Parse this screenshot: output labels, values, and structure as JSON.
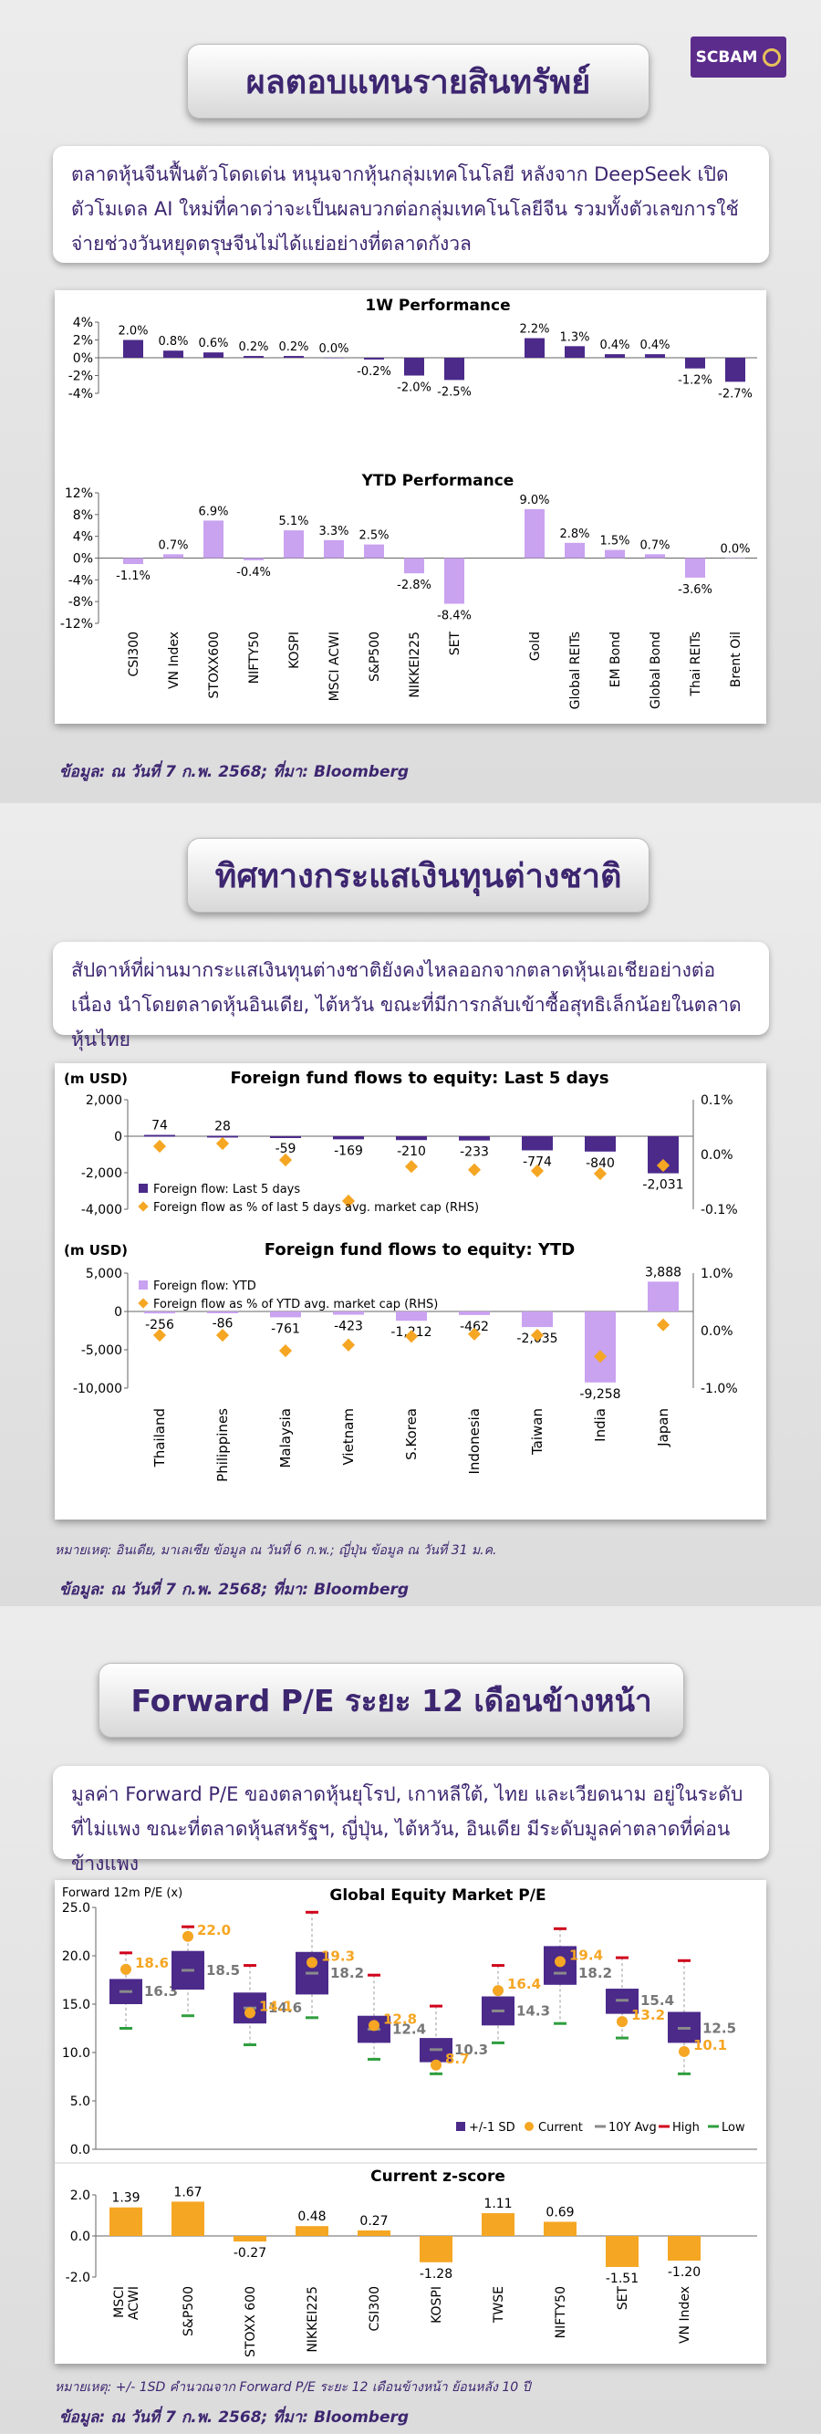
{
  "brand": "SCBAM",
  "section1": {
    "title": "ผลตอบแทนรายสินทรัพย์",
    "intro": "ตลาดหุ้นจีนฟื้นตัวโดดเด่น หนุนจากหุ้นกลุ่มเทคโนโลยี หลังจาก DeepSeek เปิดตัวโมเดล AI ใหม่ที่คาดว่าจะเป็นผลบวกต่อกลุ่มเทคโนโลยีจีน รวมทั้งตัวเลขการใช้จ่ายช่วงวันหยุดตรุษจีนไม่ได้แย่อย่างที่ตลาดกังวล",
    "source": "ข้อมูล: ณ วันที่ 7 ก.พ. 2568; ที่มา: Bloomberg"
  },
  "section2": {
    "title": "ทิศทางกระแสเงินทุนต่างชาติ",
    "intro": "สัปดาห์ที่ผ่านมากระแสเงินทุนต่างชาติยังคงไหลออกจากตลาดหุ้นเอเชียอย่างต่อเนื่อง นำโดยตลาดหุ้นอินเดีย, ไต้หวัน ขณะที่มีการกลับเข้าซื้อสุทธิเล็กน้อยในตลาดหุ้นไทย",
    "note": "หมายเหตุ: อินเดีย, มาเลเซีย ข้อมูล ณ วันที่ 6 ก.พ.; ญี่ปุ่น ข้อมูล ณ วันที่ 31 ม.ค.",
    "source": "ข้อมูล: ณ วันที่ 7 ก.พ. 2568; ที่มา: Bloomberg"
  },
  "section3": {
    "title": "Forward P/E ระยะ 12 เดือนข้างหน้า",
    "intro": "มูลค่า Forward  P/E ของตลาดหุ้นยุโรป, เกาหลีใต้, ไทย และเวียดนาม อยู่ในระดับที่ไม่แพง ขณะที่ตลาดหุ้นสหรัฐฯ, ญี่ปุ่น, ไต้หวัน, อินเดีย มีระดับมูลค่าตลาดที่ค่อนข้างแพง",
    "note": "หมายเหตุ: +/- 1SD คำนวณจาก Forward P/E ระยะ 12 เดือนข้างหน้า ย้อนหลัง 10 ปี",
    "source": "ข้อมูล: ณ วันที่ 7 ก.พ. 2568; ที่มา: Bloomberg"
  },
  "colors": {
    "purple": "#4b2a8a",
    "lavender": "#c9a2f0",
    "orange": "#f5a623",
    "grey": "#8a8a8a",
    "red": "#d0021b",
    "green": "#2e9e3e"
  },
  "chart_data": [
    {
      "type": "bar",
      "title": "1W Performance",
      "categories": [
        "CSI300",
        "VN Index",
        "STOXX600",
        "NIFTY50",
        "KOSPI",
        "MSCI ACWI",
        "S&P500",
        "NIKKEI225",
        "SET",
        "",
        "Gold",
        "Global REITs",
        "EM Bond",
        "Global Bond",
        "Thai REITs",
        "Brent Oil"
      ],
      "values": [
        2.0,
        0.8,
        0.6,
        0.2,
        0.2,
        0.0,
        -0.2,
        -2.0,
        -2.5,
        null,
        2.2,
        1.3,
        0.4,
        0.4,
        -1.2,
        -2.7
      ],
      "labels": [
        "2.0%",
        "0.8%",
        "0.6%",
        "0.2%",
        "0.2%",
        "0.0%",
        "-0.2%",
        "-2.0%",
        "-2.5%",
        "",
        "2.2%",
        "1.3%",
        "0.4%",
        "0.4%",
        "-1.2%",
        "-2.7%"
      ],
      "yticks": [
        "4%",
        "2%",
        "0%",
        "-2%",
        "-4%"
      ],
      "ylim": [
        -4,
        4
      ]
    },
    {
      "type": "bar",
      "title": "YTD Performance",
      "categories": [
        "CSI300",
        "VN Index",
        "STOXX600",
        "NIFTY50",
        "KOSPI",
        "MSCI ACWI",
        "S&P500",
        "NIKKEI225",
        "SET",
        "",
        "Gold",
        "Global REITs",
        "EM Bond",
        "Global Bond",
        "Thai REITs",
        "Brent Oil"
      ],
      "values": [
        -1.1,
        0.7,
        6.9,
        -0.4,
        5.1,
        3.3,
        2.5,
        -2.8,
        -8.4,
        null,
        9.0,
        2.8,
        1.5,
        0.7,
        -3.6,
        0.0
      ],
      "labels": [
        "-1.1%",
        "0.7%",
        "6.9%",
        "-0.4%",
        "5.1%",
        "3.3%",
        "2.5%",
        "-2.8%",
        "-8.4%",
        "",
        "9.0%",
        "2.8%",
        "1.5%",
        "0.7%",
        "-3.6%",
        "0.0%"
      ],
      "yticks": [
        "12%",
        "8%",
        "4%",
        "0%",
        "-4%",
        "-8%",
        "-12%"
      ],
      "ylim": [
        -12,
        12
      ]
    },
    {
      "type": "bar",
      "title": "Foreign fund flows to equity: Last 5 days",
      "unit_label": "(m USD)",
      "categories": [
        "Thailand",
        "Philippines",
        "Malaysia",
        "Vietnam",
        "S.Korea",
        "Indonesia",
        "Taiwan",
        "India",
        "Japan"
      ],
      "series": [
        {
          "name": "Foreign flow: Last 5 days",
          "values": [
            74,
            28,
            -59,
            -169,
            -210,
            -233,
            -774,
            -840,
            -2031
          ],
          "labels": [
            "74",
            "28",
            "-59",
            "-169",
            "-210",
            "-233",
            "-774",
            "-840",
            "-2,031"
          ]
        },
        {
          "name": "Foreign flow as % of last 5 days avg. market cap (RHS)",
          "values": [
            0.015,
            0.02,
            -0.01,
            -0.085,
            -0.022,
            -0.028,
            -0.03,
            -0.035,
            -0.02
          ]
        }
      ],
      "yticks": [
        "2,000",
        "0",
        "-2,000",
        "-4,000"
      ],
      "ylim": [
        -4000,
        2000
      ],
      "rticks": [
        "0.1%",
        "0.0%",
        "-0.1%"
      ],
      "rlim": [
        -0.1,
        0.1
      ]
    },
    {
      "type": "bar",
      "title": "Foreign fund flows to equity: YTD",
      "unit_label": "(m USD)",
      "categories": [
        "Thailand",
        "Philippines",
        "Malaysia",
        "Vietnam",
        "S.Korea",
        "Indonesia",
        "Taiwan",
        "India",
        "Japan"
      ],
      "series": [
        {
          "name": "Foreign flow: YTD",
          "values": [
            -256,
            -86,
            -761,
            -423,
            -1212,
            -462,
            -2035,
            -9258,
            3888
          ],
          "labels": [
            "-256",
            "-86",
            "-761",
            "-423",
            "-1,212",
            "-462",
            "-2,035",
            "-9,258",
            "3,888"
          ]
        },
        {
          "name": "Foreign flow as % of YTD avg. market cap (RHS)",
          "values": [
            -0.08,
            -0.08,
            -0.35,
            -0.25,
            -0.1,
            -0.06,
            -0.08,
            -0.45,
            0.1
          ]
        }
      ],
      "yticks": [
        "5,000",
        "0",
        "-5,000",
        "-10,000"
      ],
      "ylim": [
        -10000,
        5000
      ],
      "rticks": [
        "1.0%",
        "0.0%",
        "-1.0%"
      ],
      "rlim": [
        -1.0,
        1.0
      ]
    },
    {
      "type": "bar",
      "title": "Global Equity Market P/E",
      "ylabel": "Forward 12m P/E (x)",
      "categories": [
        "MSCI ACWI",
        "S&P500",
        "STOXX 600",
        "NIKKEI225",
        "CSI300",
        "KOSPI",
        "TWSE",
        "NIFTY50",
        "SET",
        "VN Index"
      ],
      "series": [
        {
          "name": "+/-1 SD",
          "low": [
            15.0,
            16.5,
            13.0,
            16.0,
            11.0,
            9.0,
            12.8,
            17.0,
            14.0,
            11.0
          ],
          "high": [
            17.6,
            20.5,
            16.2,
            20.4,
            13.8,
            11.5,
            15.8,
            21.0,
            16.6,
            14.2
          ]
        },
        {
          "name": "Current",
          "values": [
            18.6,
            22.0,
            14.1,
            19.3,
            12.8,
            8.7,
            16.4,
            19.4,
            13.2,
            10.1
          ],
          "labels": [
            "18.6",
            "22.0",
            "14.1",
            "19.3",
            "12.8",
            "8.7",
            "16.4",
            "19.4",
            "13.2",
            "10.1"
          ]
        },
        {
          "name": "10Y Avg",
          "values": [
            16.3,
            18.5,
            14.6,
            18.2,
            12.4,
            10.3,
            14.3,
            18.2,
            15.4,
            12.5
          ],
          "labels": [
            "16.3",
            "18.5",
            "14.6",
            "18.2",
            "12.4",
            "10.3",
            "14.3",
            "18.2",
            "15.4",
            "12.5"
          ]
        },
        {
          "name": "High",
          "values": [
            20.3,
            23.0,
            19.0,
            24.5,
            18.0,
            14.8,
            19.0,
            22.8,
            19.8,
            19.5
          ]
        },
        {
          "name": "Low",
          "values": [
            12.5,
            13.8,
            10.8,
            13.6,
            9.3,
            7.8,
            11.0,
            13.0,
            11.5,
            7.8
          ]
        }
      ],
      "yticks": [
        "25.0",
        "20.0",
        "15.0",
        "10.0",
        "5.0",
        "0.0"
      ],
      "ylim": [
        0,
        25
      ]
    },
    {
      "type": "bar",
      "title": "Current z-score",
      "categories": [
        "MSCI ACWI",
        "S&P500",
        "STOXX 600",
        "NIKKEI225",
        "CSI300",
        "KOSPI",
        "TWSE",
        "NIFTY50",
        "SET",
        "VN Index"
      ],
      "values": [
        1.39,
        1.67,
        -0.27,
        0.48,
        0.27,
        -1.28,
        1.11,
        0.69,
        -1.51,
        -1.2
      ],
      "labels": [
        "1.39",
        "1.67",
        "-0.27",
        "0.48",
        "0.27",
        "-1.28",
        "1.11",
        "0.69",
        "-1.51",
        "-1.20"
      ],
      "yticks": [
        "2.0",
        "0.0",
        "-2.0"
      ],
      "ylim": [
        -2,
        2
      ]
    }
  ]
}
